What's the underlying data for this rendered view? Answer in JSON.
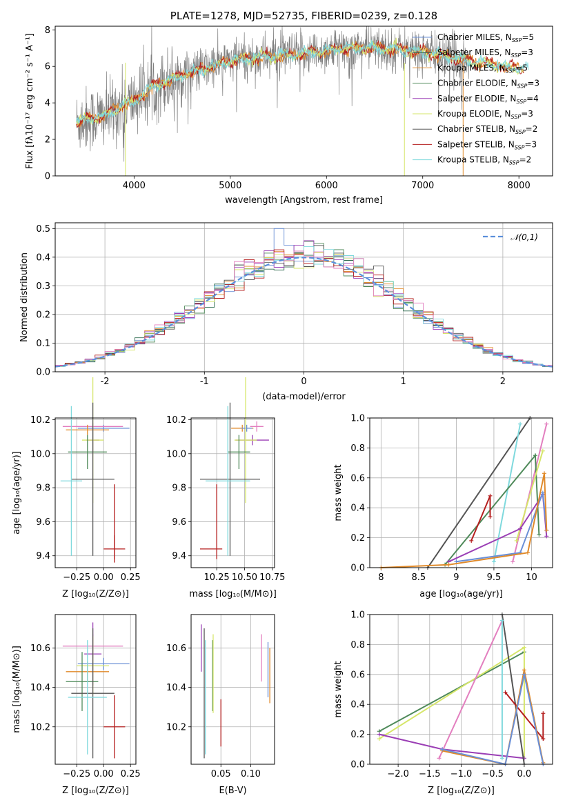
{
  "colors": {
    "Chabrier MILES": "#6a8fd6",
    "Salpeter MILES": "#2f6b4f",
    "Kroupa MILES": "#e08a2a",
    "Chabrier ELODIE": "#4f8a5a",
    "Salpeter ELODIE": "#9b3fb5",
    "Kroupa ELODIE": "#d6e66a",
    "Chabrier STELIB": "#555555",
    "Salpeter STELIB": "#b51f1f",
    "Kroupa STELIB": "#7fd9dd",
    "pink": "#e37fbf",
    "gaussian": "#5b8fdb"
  },
  "chart_data": [
    {
      "id": "spectrum",
      "type": "line",
      "title": "PLATE=1278, MJD=52735, FIBERID=0239, z=0.128",
      "xlabel": "wavelength [Angstrom, rest frame]",
      "ylabel": "Flux [fλ10⁻¹⁷ erg cm⁻² s⁻¹ A⁻¹]",
      "xlim": [
        3180,
        8350
      ],
      "ylim": [
        0,
        8.2
      ],
      "xticks": [
        4000,
        5000,
        6000,
        7000,
        8000
      ],
      "yticks": [
        0,
        2,
        4,
        6,
        8
      ],
      "grid": false,
      "legend_position": "upper right",
      "legend": [
        {
          "text": "Chabrier MILES, N",
          "sub": "SSP",
          "tail": "=5"
        },
        {
          "text": "Salpeter MILES, N",
          "sub": "SSP",
          "tail": "=3"
        },
        {
          "text": "Kroupa MILES, N",
          "sub": "SSP",
          "tail": "=5"
        },
        {
          "text": "Chabrier ELODIE, N",
          "sub": "SSP",
          "tail": "=3"
        },
        {
          "text": "Salpeter ELODIE, N",
          "sub": "SSP",
          "tail": "=4"
        },
        {
          "text": "Kroupa ELODIE, N",
          "sub": "SSP",
          "tail": "=3"
        },
        {
          "text": "Chabrier STELIB, N",
          "sub": "SSP",
          "tail": "=2"
        },
        {
          "text": "Salpeter STELIB, N",
          "sub": "SSP",
          "tail": "=3"
        },
        {
          "text": "Kroupa STELIB, N",
          "sub": "SSP",
          "tail": "=2"
        }
      ],
      "continuum_knots": [
        [
          3400,
          2.9
        ],
        [
          3500,
          3.1
        ],
        [
          3700,
          3.3
        ],
        [
          3800,
          3.6
        ],
        [
          3900,
          3.9
        ],
        [
          4000,
          4.1
        ],
        [
          4200,
          4.9
        ],
        [
          4500,
          5.5
        ],
        [
          4800,
          6.0
        ],
        [
          5000,
          6.3
        ],
        [
          5300,
          6.5
        ],
        [
          5600,
          6.6
        ],
        [
          5900,
          6.8
        ],
        [
          6200,
          7.0
        ],
        [
          6500,
          7.0
        ],
        [
          6800,
          6.9
        ],
        [
          7100,
          6.7
        ],
        [
          7400,
          6.4
        ],
        [
          7700,
          6.1
        ],
        [
          8000,
          5.9
        ],
        [
          8100,
          5.9
        ]
      ]
    },
    {
      "id": "residuals",
      "type": "histogram",
      "xlabel": "(data-model)/error",
      "ylabel": "Normed distribution",
      "xlim": [
        -2.5,
        2.5
      ],
      "ylim": [
        0,
        0.52
      ],
      "xticks": [
        -2,
        -1,
        0,
        1,
        2
      ],
      "yticks": [
        0.0,
        0.1,
        0.2,
        0.3,
        0.4,
        0.5
      ],
      "grid": true,
      "legend_position": "upper right",
      "legend": [
        "𝒩(0,1)"
      ],
      "gaussian": {
        "mu": 0,
        "sigma": 1
      },
      "bin_width": 0.1,
      "bin_range": [
        -2.5,
        2.5
      ]
    },
    {
      "id": "age-vs-Z",
      "type": "errorbar",
      "xlabel": "Z [log₁₀(Z/Z⊙)]",
      "ylabel": "age  [log₁₀(age/yr)]",
      "xlim": [
        -0.45,
        0.3
      ],
      "ylim": [
        9.33,
        10.21
      ],
      "xticks": [
        -0.25,
        0.0,
        0.25
      ],
      "xticklabels": [
        "−0.25",
        "0.00",
        "0.25"
      ],
      "yticks": [
        9.4,
        9.6,
        9.8,
        10.0,
        10.2
      ],
      "grid": true,
      "points": [
        {
          "model": "Chabrier MILES",
          "x": 0.0,
          "xerr": 0.24,
          "y": 10.15,
          "yerr": 0.02
        },
        {
          "model": "pink",
          "x": -0.1,
          "xerr": 0.28,
          "y": 10.16,
          "yerr": 0.02
        },
        {
          "model": "Kroupa MILES",
          "x": -0.15,
          "xerr": 0.2,
          "y": 10.14,
          "yerr": 0.03
        },
        {
          "model": "Salpeter ELODIE",
          "x": -0.1,
          "xerr": 0.06,
          "y": 10.08,
          "yerr": 0.07
        },
        {
          "model": "Kroupa ELODIE",
          "x": -0.1,
          "xerr": 0.1,
          "y": 10.08,
          "yerr": 0.37
        },
        {
          "model": "Chabrier ELODIE",
          "x": -0.15,
          "xerr": 0.18,
          "y": 10.01,
          "yerr": 0.1
        },
        {
          "model": "Chabrier STELIB",
          "x": -0.1,
          "xerr": 0.2,
          "y": 9.85,
          "yerr": 0.45
        },
        {
          "model": "Kroupa STELIB",
          "x": -0.3,
          "xerr": 0.1,
          "y": 9.84,
          "yerr": 0.44
        },
        {
          "model": "Salpeter STELIB",
          "x": 0.1,
          "xerr": 0.1,
          "y": 9.44,
          "yerr": 0.08
        },
        {
          "model": "Salpeter STELIB",
          "x": 0.1,
          "xerr": 0.0,
          "y": 9.6,
          "yerr": 0.22
        }
      ]
    },
    {
      "id": "age-vs-mass",
      "type": "errorbar",
      "xlabel": "mass [log₁₀(M/M⊙)]",
      "ylabel": "",
      "xlim": [
        10.02,
        10.77
      ],
      "ylim": [
        9.33,
        10.21
      ],
      "xticks": [
        10.25,
        10.5,
        10.75
      ],
      "xticklabels": [
        "10.25",
        "10.50",
        "10.75"
      ],
      "yticks": [
        9.4,
        9.6,
        9.8,
        10.0,
        10.2
      ],
      "grid": true,
      "points": [
        {
          "model": "pink",
          "x": 10.61,
          "xerr": 0.06,
          "y": 10.16,
          "yerr": 0.03
        },
        {
          "model": "Kroupa MILES",
          "x": 10.48,
          "xerr": 0.1,
          "y": 10.15,
          "yerr": 0.02
        },
        {
          "model": "Chabrier MILES",
          "x": 10.52,
          "xerr": 0.05,
          "y": 10.15,
          "yerr": 0.02
        },
        {
          "model": "Salpeter ELODIE",
          "x": 10.57,
          "xerr": 0.15,
          "y": 10.08,
          "yerr": 0.03
        },
        {
          "model": "Kroupa ELODIE",
          "x": 10.51,
          "xerr": 0.1,
          "y": 10.08,
          "yerr": 0.37
        },
        {
          "model": "Chabrier ELODIE",
          "x": 10.45,
          "xerr": 0.1,
          "y": 10.01,
          "yerr": 0.1
        },
        {
          "model": "Chabrier STELIB",
          "x": 10.37,
          "xerr": 0.27,
          "y": 9.85,
          "yerr": 0.45
        },
        {
          "model": "Kroupa STELIB",
          "x": 10.35,
          "xerr": 0.2,
          "y": 9.84,
          "yerr": 0.44
        },
        {
          "model": "Salpeter STELIB",
          "x": 10.2,
          "xerr": 0.1,
          "y": 9.44,
          "yerr": 0.0
        },
        {
          "model": "Salpeter STELIB",
          "x": 10.25,
          "xerr": 0.0,
          "y": 9.6,
          "yerr": 0.22
        }
      ]
    },
    {
      "id": "weight-vs-age",
      "type": "line",
      "xlabel": "age  [log₁₀(age/yr)]",
      "ylabel": "mass weight",
      "xlim": [
        7.85,
        10.28
      ],
      "ylim": [
        0,
        1.0
      ],
      "xticks": [
        8.0,
        8.5,
        9.0,
        9.5,
        10.0
      ],
      "yticks": [
        0.0,
        0.2,
        0.4,
        0.6,
        0.8,
        1.0
      ],
      "grid": true,
      "series": [
        {
          "model": "Chabrier STELIB",
          "points": [
            [
              8.62,
              0.0
            ],
            [
              9.98,
              1.0
            ]
          ]
        },
        {
          "model": "Kroupa STELIB",
          "points": [
            [
              9.5,
              0.04
            ],
            [
              9.85,
              0.96
            ]
          ]
        },
        {
          "model": "pink",
          "points": [
            [
              9.75,
              0.04
            ],
            [
              10.2,
              0.96
            ]
          ]
        },
        {
          "model": "Chabrier ELODIE",
          "points": [
            [
              8.85,
              0.02
            ],
            [
              10.05,
              0.75
            ],
            [
              10.1,
              0.22
            ]
          ]
        },
        {
          "model": "Kroupa ELODIE",
          "points": [
            [
              9.8,
              0.18
            ],
            [
              10.15,
              0.78
            ]
          ]
        },
        {
          "model": "Salpeter STELIB",
          "points": [
            [
              9.2,
              0.18
            ],
            [
              9.45,
              0.48
            ],
            [
              9.45,
              0.34
            ]
          ]
        },
        {
          "model": "Salpeter ELODIE",
          "points": [
            [
              8.9,
              0.04
            ],
            [
              9.85,
              0.26
            ],
            [
              10.15,
              0.49
            ],
            [
              10.2,
              0.21
            ]
          ]
        },
        {
          "model": "Chabrier MILES",
          "points": [
            [
              9.0,
              0.04
            ],
            [
              9.85,
              0.1
            ],
            [
              10.15,
              0.5
            ],
            [
              10.2,
              0.25
            ]
          ]
        },
        {
          "model": "Kroupa MILES",
          "points": [
            [
              8.0,
              0.0
            ],
            [
              8.9,
              0.02
            ],
            [
              9.95,
              0.1
            ],
            [
              10.17,
              0.63
            ],
            [
              10.2,
              0.25
            ]
          ]
        }
      ]
    },
    {
      "id": "mass-vs-Z",
      "type": "errorbar",
      "xlabel": "Z [log₁₀(Z/Z⊙)]",
      "ylabel": "mass [log₁₀(M/M⊙)]",
      "xlim": [
        -0.45,
        0.3
      ],
      "ylim": [
        10.01,
        10.77
      ],
      "xticks": [
        -0.25,
        0.0,
        0.25
      ],
      "xticklabels": [
        "−0.25",
        "0.00",
        "0.25"
      ],
      "yticks": [
        10.2,
        10.4,
        10.6
      ],
      "grid": true,
      "points": [
        {
          "model": "pink",
          "x": -0.1,
          "xerr": 0.28,
          "y": 10.61,
          "yerr": 0.06
        },
        {
          "model": "Salpeter ELODIE",
          "x": -0.1,
          "xerr": 0.08,
          "y": 10.57,
          "yerr": 0.16
        },
        {
          "model": "Chabrier MILES",
          "x": 0.0,
          "xerr": 0.24,
          "y": 10.52,
          "yerr": 0.03
        },
        {
          "model": "Kroupa ELODIE",
          "x": -0.1,
          "xerr": 0.15,
          "y": 10.51,
          "yerr": 0.15
        },
        {
          "model": "Kroupa MILES",
          "x": -0.15,
          "xerr": 0.2,
          "y": 10.48,
          "yerr": 0.05
        },
        {
          "model": "Chabrier ELODIE",
          "x": -0.2,
          "xerr": 0.15,
          "y": 10.43,
          "yerr": 0.15
        },
        {
          "model": "Chabrier STELIB",
          "x": -0.1,
          "xerr": 0.2,
          "y": 10.37,
          "yerr": 0.33
        },
        {
          "model": "Kroupa STELIB",
          "x": -0.15,
          "xerr": 0.18,
          "y": 10.35,
          "yerr": 0.29
        },
        {
          "model": "Salpeter STELIB",
          "x": 0.1,
          "xerr": 0.1,
          "y": 10.2,
          "yerr": 0.16
        }
      ]
    },
    {
      "id": "mass-vs-ebv",
      "type": "errorbar",
      "xlabel": "E(B-V)",
      "ylabel": "",
      "xlim": [
        0.0,
        0.14
      ],
      "ylim": [
        10.01,
        10.77
      ],
      "xticks": [
        0.05,
        0.1
      ],
      "xticklabels": [
        "0.05",
        "0.10"
      ],
      "yticks": [
        10.2,
        10.4,
        10.6
      ],
      "grid": true,
      "points": [
        {
          "model": "Salpeter ELODIE",
          "x": 0.017,
          "xerr": 0.0,
          "y": 10.6,
          "yerr": 0.12
        },
        {
          "model": "Chabrier STELIB",
          "x": 0.022,
          "xerr": 0.0,
          "y": 10.37,
          "yerr": 0.33
        },
        {
          "model": "Kroupa STELIB",
          "x": 0.024,
          "xerr": 0.0,
          "y": 10.35,
          "yerr": 0.29
        },
        {
          "model": "Chabrier ELODIE",
          "x": 0.036,
          "xerr": 0.0,
          "y": 10.46,
          "yerr": 0.18
        },
        {
          "model": "Kroupa ELODIE",
          "x": 0.037,
          "xerr": 0.0,
          "y": 10.47,
          "yerr": 0.2
        },
        {
          "model": "Salpeter STELIB",
          "x": 0.05,
          "xerr": 0.0,
          "y": 10.22,
          "yerr": 0.12
        },
        {
          "model": "pink",
          "x": 0.118,
          "xerr": 0.0,
          "y": 10.55,
          "yerr": 0.12
        },
        {
          "model": "Chabrier MILES",
          "x": 0.129,
          "xerr": 0.0,
          "y": 10.49,
          "yerr": 0.14
        },
        {
          "model": "Kroupa MILES",
          "x": 0.132,
          "xerr": 0.0,
          "y": 10.46,
          "yerr": 0.14
        }
      ]
    },
    {
      "id": "weight-vs-Z",
      "type": "line",
      "xlabel": "Z [log₁₀(Z/Z⊙)]",
      "ylabel": "mass weight",
      "xlim": [
        -2.45,
        0.45
      ],
      "ylim": [
        0,
        1.0
      ],
      "xticks": [
        -2.0,
        -1.5,
        -1.0,
        -0.5,
        0.0
      ],
      "xticklabels": [
        "−2.0",
        "−1.5",
        "−1.0",
        "−0.5",
        "0.0"
      ],
      "yticks": [
        0.0,
        0.2,
        0.4,
        0.6,
        0.8,
        1.0
      ],
      "grid": true,
      "series": [
        {
          "model": "Chabrier ELODIE",
          "points": [
            [
              -2.3,
              0.22
            ],
            [
              0.0,
              0.75
            ]
          ]
        },
        {
          "model": "Kroupa ELODIE",
          "points": [
            [
              -2.3,
              0.17
            ],
            [
              0.0,
              0.78
            ],
            [
              0.0,
              0.04
            ]
          ]
        },
        {
          "model": "Salpeter ELODIE",
          "points": [
            [
              -2.3,
              0.2
            ],
            [
              -1.3,
              0.1
            ],
            [
              0.0,
              0.04
            ]
          ]
        },
        {
          "model": "pink",
          "points": [
            [
              -1.35,
              0.04
            ],
            [
              -0.35,
              0.96
            ]
          ]
        },
        {
          "model": "Chabrier STELIB",
          "points": [
            [
              -0.35,
              1.0
            ],
            [
              0.0,
              0.0
            ]
          ]
        },
        {
          "model": "Kroupa STELIB",
          "points": [
            [
              -0.35,
              0.96
            ],
            [
              -0.35,
              0.04
            ]
          ]
        },
        {
          "model": "Salpeter STELIB",
          "points": [
            [
              -0.3,
              0.48
            ],
            [
              0.3,
              0.17
            ],
            [
              0.3,
              0.34
            ]
          ]
        },
        {
          "model": "Kroupa MILES",
          "points": [
            [
              -1.3,
              0.09
            ],
            [
              -0.3,
              0.0
            ],
            [
              0.0,
              0.63
            ],
            [
              0.3,
              0.01
            ]
          ]
        },
        {
          "model": "Chabrier MILES",
          "points": [
            [
              -1.3,
              0.1
            ],
            [
              -0.3,
              0.0
            ],
            [
              0.0,
              0.6
            ],
            [
              0.3,
              0.0
            ]
          ]
        }
      ]
    }
  ]
}
